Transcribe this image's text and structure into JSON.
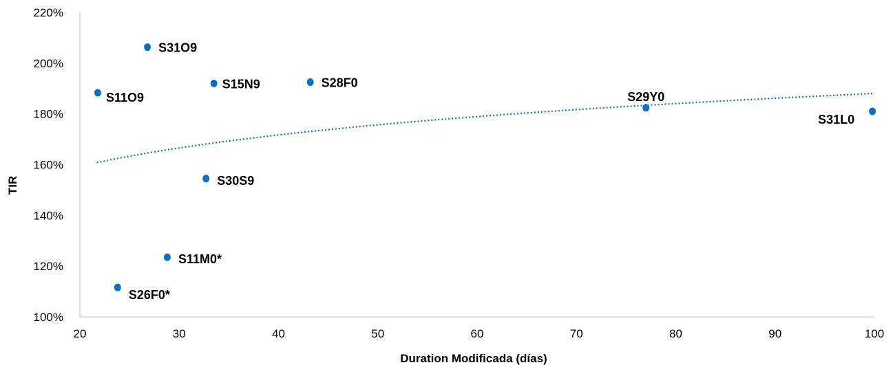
{
  "chart_data": {
    "type": "scatter",
    "title": "",
    "xlabel": "Duration Modificada (días)",
    "ylabel": "TIR",
    "xlim": [
      20,
      100
    ],
    "ylim": [
      100,
      220
    ],
    "x_ticks": [
      "20",
      "30",
      "40",
      "50",
      "60",
      "70",
      "80",
      "90",
      "100"
    ],
    "y_ticks": [
      "100%",
      "120%",
      "140%",
      "160%",
      "180%",
      "200%",
      "220%"
    ],
    "grid": false,
    "point_color": "#0d6fbf",
    "trendline": {
      "type": "logarithmic",
      "style": "dotted",
      "color": "#0d6fbf",
      "x_from": 21.7,
      "x_to": 99.8,
      "y_from": 160.8,
      "y_to": 188.0
    },
    "points": [
      {
        "label": "S31O9",
        "x": 26.8,
        "y": 206.3
      },
      {
        "label": "S11O9",
        "x": 21.8,
        "y": 188.3
      },
      {
        "label": "S15N9",
        "x": 33.5,
        "y": 192.0
      },
      {
        "label": "S28F0",
        "x": 43.2,
        "y": 192.5
      },
      {
        "label": "S29Y0",
        "x": 77.0,
        "y": 182.4
      },
      {
        "label": "S31L0",
        "x": 99.8,
        "y": 181.0
      },
      {
        "label": "S30S9",
        "x": 32.7,
        "y": 154.5
      },
      {
        "label": "S11M0*",
        "x": 28.8,
        "y": 123.5
      },
      {
        "label": "S26F0*",
        "x": 23.8,
        "y": 111.6
      }
    ]
  }
}
